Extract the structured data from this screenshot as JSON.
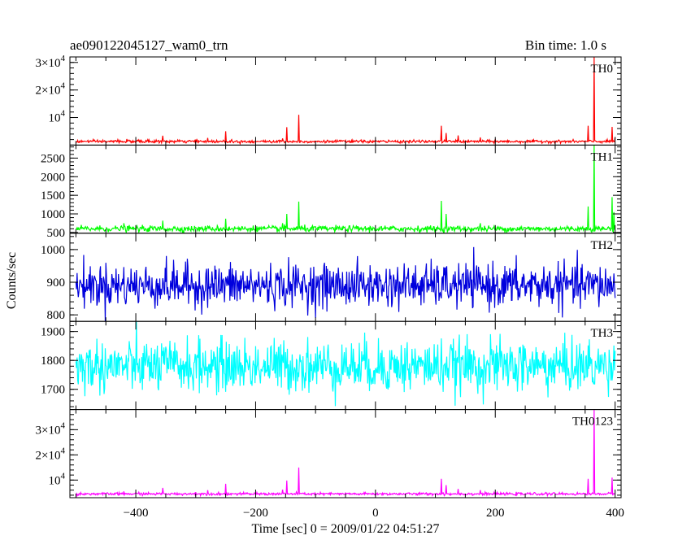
{
  "header": {
    "left_title": "ae090122045127_wam0_trn",
    "right_title": "Bin time: 1.0 s"
  },
  "chart_data": {
    "type": "line",
    "xlabel": "Time [sec] 0 = 2009/01/22 04:51:27",
    "ylabel": "Counts/sec",
    "xlim": [
      -510,
      410
    ],
    "xticks": [
      -400,
      -200,
      0,
      200,
      400
    ],
    "xtick_labels": [
      "−400",
      "−200",
      "0",
      "200",
      "400"
    ],
    "bin_time_s": 1.0,
    "panels": [
      {
        "name": "TH0",
        "label": "TH0",
        "color": "#ff0000",
        "ylim": [
          0,
          32000
        ],
        "yticks": [
          10000,
          20000,
          30000
        ],
        "ytick_labels": [
          {
            "mant": "",
            "exp": "4"
          },
          {
            "mant": "2×10",
            "exp": "4"
          },
          {
            "mant": "3×10",
            "exp": "4"
          }
        ],
        "baseline": 1300,
        "noise": 250,
        "spikes": [
          [
            -480,
            1700
          ],
          [
            -455,
            1800
          ],
          [
            -430,
            2000
          ],
          [
            -415,
            2200
          ],
          [
            -395,
            1900
          ],
          [
            -380,
            2000
          ],
          [
            -355,
            3400
          ],
          [
            -330,
            1900
          ],
          [
            -300,
            2000
          ],
          [
            -280,
            2600
          ],
          [
            -250,
            5000
          ],
          [
            -240,
            2000
          ],
          [
            -155,
            2400
          ],
          [
            -148,
            6500
          ],
          [
            -128,
            11000
          ],
          [
            -60,
            1700
          ],
          [
            110,
            7000
          ],
          [
            118,
            4400
          ],
          [
            138,
            3500
          ],
          [
            175,
            2800
          ],
          [
            200,
            2000
          ],
          [
            355,
            7000
          ],
          [
            365,
            32000
          ],
          [
            395,
            6600
          ],
          [
            400,
            2800
          ]
        ]
      },
      {
        "name": "TH1",
        "label": "TH1",
        "color": "#00ff00",
        "ylim": [
          480,
          2850
        ],
        "yticks": [
          500,
          1000,
          1500,
          2000,
          2500
        ],
        "ytick_labels": [
          "500",
          "1000",
          "1500",
          "2000",
          "2500"
        ],
        "baseline": 600,
        "noise": 40,
        "spikes": [
          [
            -420,
            750
          ],
          [
            -355,
            820
          ],
          [
            -250,
            870
          ],
          [
            -155,
            750
          ],
          [
            -148,
            1000
          ],
          [
            -128,
            1330
          ],
          [
            110,
            1350
          ],
          [
            118,
            1000
          ],
          [
            175,
            750
          ],
          [
            355,
            1200
          ],
          [
            365,
            2900
          ],
          [
            395,
            1450
          ],
          [
            398,
            1050
          ]
        ]
      },
      {
        "name": "TH2",
        "label": "TH2",
        "color": "#0000dd",
        "ylim": [
          780,
          1050
        ],
        "yticks": [
          800,
          900,
          1000
        ],
        "ytick_labels": [
          "800",
          "900",
          "1000"
        ],
        "baseline": 890,
        "noise": 33,
        "spikes": []
      },
      {
        "name": "TH3",
        "label": "TH3",
        "color": "#00ffff",
        "ylim": [
          1630,
          1935
        ],
        "yticks": [
          1700,
          1800,
          1900
        ],
        "ytick_labels": [
          "1700",
          "1800",
          "1900"
        ],
        "baseline": 1780,
        "noise": 45,
        "spikes": []
      },
      {
        "name": "TH0123",
        "label": "TH0123",
        "color": "#ff00ff",
        "ylim": [
          3000,
          38000
        ],
        "yticks": [
          10000,
          20000,
          30000
        ],
        "ytick_labels": [
          {
            "mant": "",
            "exp": "4"
          },
          {
            "mant": "2×10",
            "exp": "4"
          },
          {
            "mant": "3×10",
            "exp": "4"
          }
        ],
        "baseline": 4500,
        "noise": 250,
        "spikes": [
          [
            -420,
            5500
          ],
          [
            -395,
            5200
          ],
          [
            -355,
            6900
          ],
          [
            -300,
            5200
          ],
          [
            -280,
            6000
          ],
          [
            -250,
            8500
          ],
          [
            -155,
            6200
          ],
          [
            -148,
            9800
          ],
          [
            -128,
            15000
          ],
          [
            110,
            10500
          ],
          [
            118,
            8000
          ],
          [
            138,
            6500
          ],
          [
            175,
            6000
          ],
          [
            355,
            10500
          ],
          [
            365,
            38000
          ],
          [
            395,
            11000
          ]
        ]
      }
    ]
  }
}
